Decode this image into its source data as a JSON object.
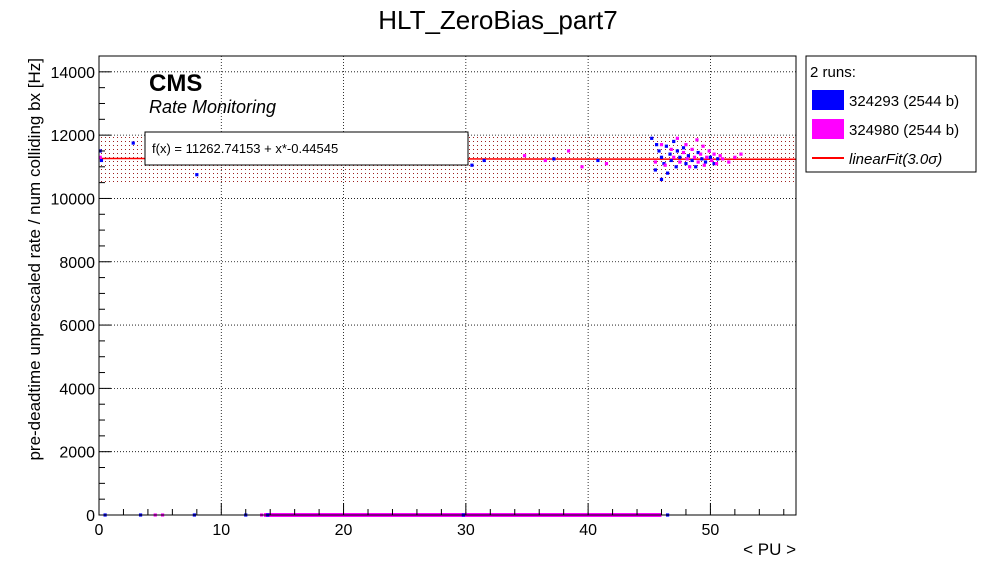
{
  "chart_data": {
    "type": "scatter",
    "title": "HLT_ZeroBias_part7",
    "xlabel": "< PU >",
    "ylabel": "pre-deadtime unprescaled rate / num colliding bx [Hz]",
    "xlim": [
      0,
      57
    ],
    "ylim": [
      0,
      14500
    ],
    "x_ticks": [
      0,
      10,
      20,
      30,
      40,
      50
    ],
    "y_ticks": [
      0,
      2000,
      4000,
      6000,
      8000,
      10000,
      12000,
      14000
    ],
    "grid": true,
    "annotations": {
      "experiment": "CMS",
      "subtitle": "Rate Monitoring",
      "fit_formula": "f(x) = 11262.74153 + x*-0.44545"
    },
    "legend": {
      "position": "outside-right-top",
      "header": "2 runs:",
      "entries": [
        {
          "label": "324293 (2544 b)",
          "color": "#0000ff",
          "kind": "box"
        },
        {
          "label": "324980 (2544 b)",
          "color": "#ff00ff",
          "kind": "box"
        },
        {
          "label": "linearFit(3.0σ)",
          "color": "#ff0000",
          "kind": "line"
        }
      ]
    },
    "fit": {
      "intercept": 11262.74153,
      "slope": -0.44545,
      "band_low": 10500,
      "band_high": 12000,
      "color": "#ff0000"
    },
    "series": [
      {
        "name": "324293 (2544 b)",
        "color": "#0000ff",
        "points": [
          [
            0.1,
            11500
          ],
          [
            0.2,
            11200
          ],
          [
            2.8,
            11750
          ],
          [
            8,
            10750
          ],
          [
            0.5,
            0
          ],
          [
            3.4,
            0
          ],
          [
            7.8,
            0
          ],
          [
            12,
            0
          ],
          [
            13.8,
            0
          ],
          [
            29.8,
            0
          ],
          [
            46.5,
            0
          ],
          [
            30.5,
            11050
          ],
          [
            31.5,
            11200
          ],
          [
            37.2,
            11250
          ],
          [
            40.8,
            11200
          ],
          [
            45.2,
            11900
          ],
          [
            45.5,
            10900
          ],
          [
            45.6,
            11700
          ],
          [
            45.8,
            11500
          ],
          [
            46,
            10600
          ],
          [
            46,
            11300
          ],
          [
            46.2,
            11100
          ],
          [
            46.4,
            11650
          ],
          [
            46.5,
            10800
          ],
          [
            46.7,
            11400
          ],
          [
            46.8,
            11200
          ],
          [
            47,
            11800
          ],
          [
            47.2,
            11000
          ],
          [
            47.3,
            11500
          ],
          [
            47.5,
            11300
          ],
          [
            47.8,
            11600
          ],
          [
            48,
            11100
          ],
          [
            48.2,
            11350
          ],
          [
            48.5,
            11200
          ],
          [
            48.8,
            11000
          ],
          [
            49,
            11450
          ],
          [
            49.3,
            11250
          ],
          [
            49.6,
            11150
          ],
          [
            50,
            11300
          ],
          [
            50.3,
            11100
          ],
          [
            50.6,
            11250
          ]
        ]
      },
      {
        "name": "324980 (2544 b)",
        "color": "#ff00ff",
        "points": [
          [
            0.1,
            11300
          ],
          [
            4.6,
            0
          ],
          [
            5.2,
            0
          ],
          [
            13.3,
            0
          ],
          [
            14.5,
            0
          ],
          [
            22,
            0
          ],
          [
            31,
            0
          ],
          [
            44,
            0
          ],
          [
            34.8,
            11350
          ],
          [
            36.5,
            11200
          ],
          [
            38.4,
            11500
          ],
          [
            39.5,
            11000
          ],
          [
            41.5,
            11100
          ],
          [
            45.5,
            11150
          ],
          [
            46,
            11700
          ],
          [
            46.3,
            11050
          ],
          [
            46.8,
            11550
          ],
          [
            47,
            11300
          ],
          [
            47.3,
            11900
          ],
          [
            47.5,
            11150
          ],
          [
            47.8,
            11450
          ],
          [
            48,
            11700
          ],
          [
            48.1,
            11250
          ],
          [
            48.3,
            11000
          ],
          [
            48.5,
            11550
          ],
          [
            48.7,
            11300
          ],
          [
            48.9,
            11850
          ],
          [
            49,
            11150
          ],
          [
            49.2,
            11400
          ],
          [
            49.4,
            11650
          ],
          [
            49.5,
            11050
          ],
          [
            49.7,
            11300
          ],
          [
            49.9,
            11500
          ],
          [
            50.1,
            11200
          ],
          [
            50.3,
            11400
          ],
          [
            50.5,
            11100
          ],
          [
            50.8,
            11350
          ],
          [
            51,
            11250
          ],
          [
            51.5,
            11150
          ],
          [
            52,
            11300
          ],
          [
            52.5,
            11400
          ]
        ]
      }
    ]
  }
}
